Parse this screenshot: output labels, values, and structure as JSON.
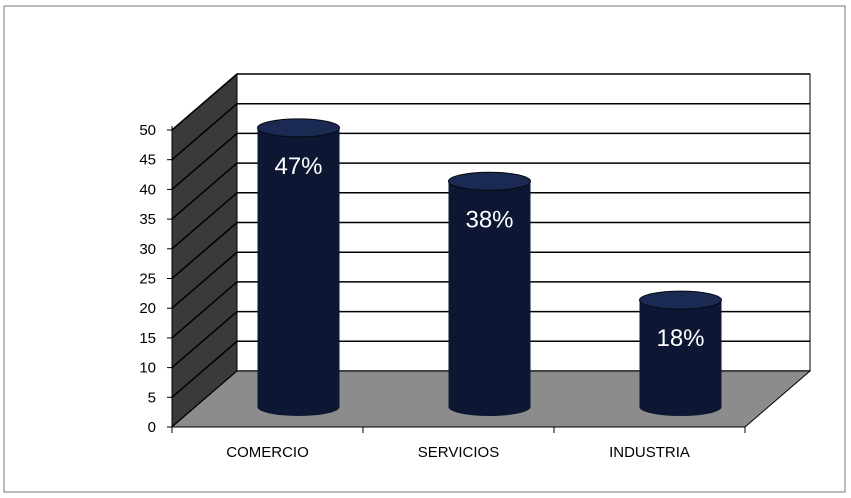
{
  "chart_data": {
    "type": "bar",
    "categories": [
      "COMERCIO",
      "SERVICIOS",
      "INDUSTRIA"
    ],
    "values": [
      47,
      38,
      18
    ],
    "data_labels": [
      "47%",
      "38%",
      "18%"
    ],
    "ylim": [
      0,
      50
    ],
    "yticks": [
      0,
      5,
      10,
      15,
      20,
      25,
      30,
      35,
      40,
      45,
      50
    ],
    "grid": true,
    "style": "3d-cylinder",
    "legend": "none",
    "colors": {
      "bar": "#0d1733",
      "bar_top": "#1b2a52",
      "floor": "#8c8c8c",
      "side_wall": "#3a3a3a",
      "grid": "#000000"
    }
  }
}
